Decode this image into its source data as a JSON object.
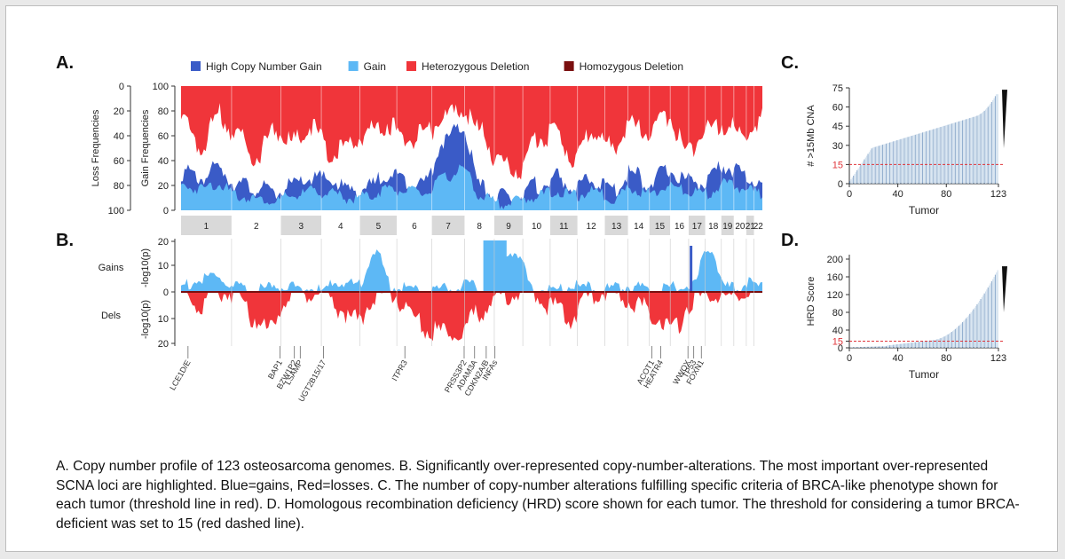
{
  "panel_labels": [
    "A.",
    "B.",
    "C.",
    "D."
  ],
  "legend": [
    {
      "label": "High Copy Number Gain",
      "color": "#3a5bc7"
    },
    {
      "label": "Gain",
      "color": "#5db8f5"
    },
    {
      "label": "Heterozygous Deletion",
      "color": "#f0353a"
    },
    {
      "label": "Homozygous Deletion",
      "color": "#7a0f0f"
    }
  ],
  "colors": {
    "high_gain": "#3a5bc7",
    "gain": "#5db8f5",
    "het_del": "#f0353a",
    "hom_del": "#7a0f0f",
    "threshold": "#e0353a",
    "bars_light": "#c8d9ea",
    "bars_dark": "#3b6ea8"
  },
  "caption": "A. Copy number profile of 123 osteosarcoma genomes. B. Significantly over-represented copy-number-alterations. The most important over-represented SCNA loci are highlighted. Blue=gains, Red=losses. C. The number of copy-number alterations fulfilling specific criteria of BRCA-like phenotype shown for each tumor (threshold line in red). D. Homologous recombination deficiency (HRD) score shown for each tumor. The threshold for considering a tumor BRCA-deficient was set to 15 (red dashed line).",
  "chart_data": [
    {
      "id": "A",
      "type": "area",
      "ylabel_left": "Loss Frequencies",
      "ylabel_right": "Gain Frequencies",
      "loss_ticks": [
        "0",
        "20",
        "40",
        "60",
        "80",
        "100"
      ],
      "gain_ticks": [
        "100",
        "80",
        "60",
        "40",
        "20",
        "0"
      ],
      "ylim": [
        0,
        100
      ],
      "chromosomes": [
        "1",
        "2",
        "3",
        "4",
        "5",
        "6",
        "7",
        "8",
        "9",
        "10",
        "11",
        "12",
        "13",
        "14",
        "15",
        "16",
        "17",
        "18",
        "19",
        "20",
        "21",
        "22"
      ],
      "chromosome_widths": [
        8.5,
        8.3,
        6.8,
        6.5,
        6.2,
        5.9,
        5.5,
        5.0,
        4.8,
        4.6,
        4.6,
        4.6,
        3.9,
        3.6,
        3.5,
        3.1,
        2.8,
        2.7,
        2.1,
        2.1,
        1.3,
        1.4
      ],
      "series": [
        {
          "name": "High Copy Number Gain",
          "values": [
            35,
            30,
            38,
            25,
            22,
            18,
            24,
            30,
            28,
            20,
            22,
            34,
            28,
            26,
            60,
            70,
            22,
            14,
            16,
            24,
            30,
            22,
            28,
            20,
            34,
            26,
            36,
            28,
            26,
            40,
            32,
            26
          ]
        },
        {
          "name": "Gain",
          "values": [
            22,
            20,
            24,
            14,
            12,
            10,
            14,
            18,
            16,
            12,
            14,
            20,
            18,
            16,
            28,
            36,
            14,
            8,
            10,
            14,
            18,
            14,
            18,
            12,
            20,
            16,
            22,
            18,
            16,
            24,
            20,
            16
          ]
        },
        {
          "name": "Heterozygous Deletion",
          "values": [
            30,
            55,
            28,
            45,
            62,
            40,
            50,
            38,
            60,
            52,
            42,
            35,
            48,
            45,
            30,
            25,
            42,
            68,
            72,
            46,
            44,
            62,
            40,
            55,
            38,
            42,
            30,
            58,
            40,
            35,
            45,
            30
          ]
        }
      ]
    },
    {
      "id": "B",
      "type": "area",
      "ylabel_gains": "Gains",
      "ylabel_dels": "Dels",
      "ylabel": "-log10(p)",
      "gain_ticks": [
        "20",
        "10",
        "0"
      ],
      "del_ticks": [
        "10",
        "20"
      ],
      "genes": [
        "LCE1D/E",
        "BAP1",
        "BZW1P2",
        "LSAMP",
        "UGT2B15/17",
        "ITPR3",
        "PRSS3P2",
        "ADAM3A",
        "CDKN2A/B",
        "INFAs",
        "ACOT1",
        "HEATR4",
        "WWOX",
        "TP53",
        "FOXN1"
      ],
      "gene_positions": [
        0.012,
        0.17,
        0.195,
        0.205,
        0.245,
        0.385,
        0.487,
        0.505,
        0.525,
        0.54,
        0.81,
        0.825,
        0.872,
        0.882,
        0.895
      ]
    },
    {
      "id": "C",
      "type": "bar",
      "ylabel": "# >15Mb CNA",
      "xlabel": "Tumor",
      "x_ticks": [
        "0",
        "40",
        "80",
        "123"
      ],
      "y_ticks": [
        "0",
        "15",
        "30",
        "45",
        "60",
        "75"
      ],
      "ylim": [
        0,
        75
      ],
      "xlim": [
        0,
        123
      ],
      "threshold": 15,
      "n": 123,
      "min": 2,
      "max": 70
    },
    {
      "id": "D",
      "type": "bar",
      "ylabel": "HRD Score",
      "xlabel": "Tumor",
      "x_ticks": [
        "0",
        "40",
        "80",
        "123"
      ],
      "y_ticks": [
        "0",
        "15",
        "40",
        "80",
        "120",
        "160",
        "200"
      ],
      "ylim": [
        0,
        210
      ],
      "xlim": [
        0,
        123
      ],
      "threshold": 15,
      "n": 123,
      "min": 0,
      "max": 175
    }
  ]
}
